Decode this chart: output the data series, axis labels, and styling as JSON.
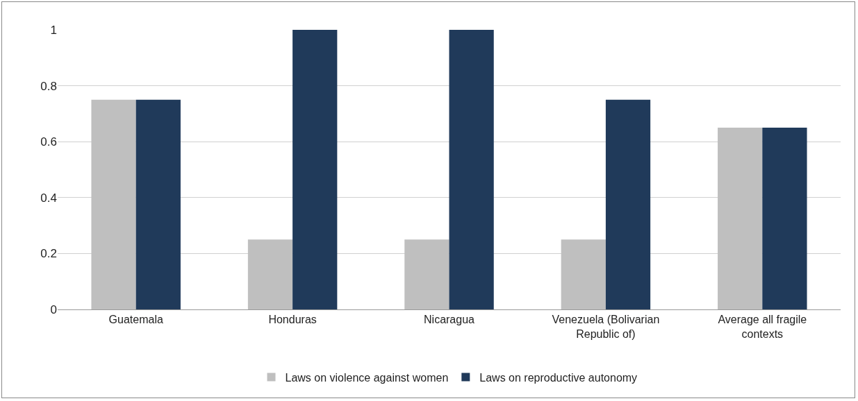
{
  "chart_data": {
    "type": "bar",
    "categories": [
      "Guatemala",
      "Honduras",
      "Nicaragua",
      "Venezuela (Bolivarian Republic of)",
      "Average all fragile contexts"
    ],
    "series": [
      {
        "name": "Laws on violence against women",
        "color": "#bfbfbf",
        "values": [
          0.75,
          0.25,
          0.25,
          0.25,
          0.65
        ]
      },
      {
        "name": "Laws on reproductive autonomy",
        "color": "#203a5a",
        "values": [
          0.75,
          1,
          1,
          0.75,
          0.65
        ]
      }
    ],
    "ylim": [
      0,
      1
    ],
    "yticks": [
      0,
      0.2,
      0.4,
      0.6,
      0.8,
      1
    ],
    "grid": "y",
    "legend": "bottom"
  }
}
